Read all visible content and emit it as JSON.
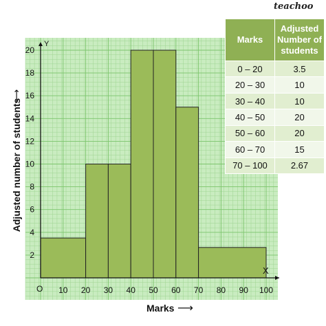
{
  "brand": "teachoo",
  "chart_data": {
    "type": "bar",
    "subtype": "histogram",
    "bins": [
      {
        "from": 0,
        "to": 20,
        "value": 3.5
      },
      {
        "from": 20,
        "to": 30,
        "value": 10
      },
      {
        "from": 30,
        "to": 40,
        "value": 10
      },
      {
        "from": 40,
        "to": 50,
        "value": 20
      },
      {
        "from": 50,
        "to": 60,
        "value": 20
      },
      {
        "from": 60,
        "to": 70,
        "value": 15
      },
      {
        "from": 70,
        "to": 100,
        "value": 2.67
      }
    ],
    "xlabel": "Marks",
    "xlabel_arrow": "⟶",
    "ylabel": "Adjusted number of students",
    "ylabel_arrow": "⟶",
    "axis_x_letter": "X",
    "axis_y_letter": "Y",
    "origin_label": "O",
    "xlim": [
      0,
      105
    ],
    "ylim": [
      0,
      21
    ],
    "x_ticks": [
      10,
      20,
      30,
      40,
      50,
      60,
      70,
      80,
      90,
      100
    ],
    "y_ticks": [
      2,
      4,
      6,
      8,
      10,
      12,
      14,
      16,
      18,
      20
    ],
    "grid": true,
    "bar_color": "#9bbb59",
    "bar_edge": "#222222"
  },
  "table": {
    "headers": [
      "Marks",
      "Adjusted Number of students"
    ],
    "header_bg": "#8fb054",
    "rows": [
      [
        "0 – 20",
        "3.5"
      ],
      [
        "20 – 30",
        "10"
      ],
      [
        "30 – 40",
        "10"
      ],
      [
        "40 – 50",
        "20"
      ],
      [
        "50 – 60",
        "20"
      ],
      [
        "60 – 70",
        "15"
      ],
      [
        "70 – 100",
        "2.67"
      ]
    ]
  }
}
